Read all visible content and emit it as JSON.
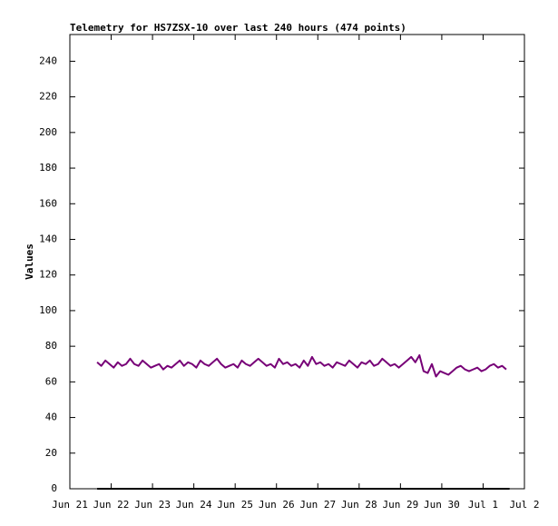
{
  "chart_data": {
    "type": "line",
    "title": "Telemetry for HS7ZSX-10 over last 240 hours (474 points)",
    "y_label": "Values",
    "xlim": [
      0,
      11
    ],
    "xticks": [
      {
        "value": 0,
        "label": "Jun 21"
      },
      {
        "value": 1,
        "label": "Jun 22"
      },
      {
        "value": 2,
        "label": "Jun 23"
      },
      {
        "value": 3,
        "label": "Jun 24"
      },
      {
        "value": 4,
        "label": "Jun 25"
      },
      {
        "value": 5,
        "label": "Jun 26"
      },
      {
        "value": 6,
        "label": "Jun 27"
      },
      {
        "value": 7,
        "label": "Jun 28"
      },
      {
        "value": 8,
        "label": "Jun 29"
      },
      {
        "value": 9,
        "label": "Jun 30"
      },
      {
        "value": 10,
        "label": "Jul 1"
      },
      {
        "value": 11,
        "label": "Jul 2"
      }
    ],
    "ylim": [
      0,
      255
    ],
    "yticks": [
      0,
      20,
      40,
      60,
      80,
      100,
      120,
      140,
      160,
      180,
      200,
      220,
      240
    ],
    "series": [
      {
        "color": "#770077",
        "x": [
          0.66,
          0.76,
          0.86,
          0.96,
          1.06,
          1.16,
          1.26,
          1.36,
          1.46,
          1.56,
          1.66,
          1.76,
          1.86,
          1.96,
          2.06,
          2.16,
          2.26,
          2.36,
          2.46,
          2.56,
          2.66,
          2.76,
          2.86,
          2.96,
          3.06,
          3.16,
          3.26,
          3.36,
          3.46,
          3.56,
          3.66,
          3.76,
          3.86,
          3.96,
          4.06,
          4.16,
          4.26,
          4.36,
          4.46,
          4.56,
          4.66,
          4.76,
          4.86,
          4.96,
          5.06,
          5.16,
          5.26,
          5.36,
          5.46,
          5.56,
          5.66,
          5.76,
          5.86,
          5.96,
          6.06,
          6.16,
          6.26,
          6.36,
          6.46,
          6.56,
          6.66,
          6.76,
          6.86,
          6.96,
          7.06,
          7.16,
          7.26,
          7.36,
          7.46,
          7.56,
          7.66,
          7.76,
          7.86,
          7.96,
          8.06,
          8.16,
          8.26,
          8.36,
          8.46,
          8.56,
          8.66,
          8.76,
          8.86,
          8.96,
          9.06,
          9.16,
          9.26,
          9.36,
          9.46,
          9.56,
          9.66,
          9.76,
          9.86,
          9.96,
          10.06,
          10.16,
          10.26,
          10.36,
          10.46,
          10.56
        ],
        "values": [
          71,
          69,
          72,
          70,
          68,
          71,
          69,
          70,
          73,
          70,
          69,
          72,
          70,
          68,
          69,
          70,
          67,
          69,
          68,
          70,
          72,
          69,
          71,
          70,
          68,
          72,
          70,
          69,
          71,
          73,
          70,
          68,
          69,
          70,
          68,
          72,
          70,
          69,
          71,
          73,
          71,
          69,
          70,
          68,
          73,
          70,
          71,
          69,
          70,
          68,
          72,
          69,
          74,
          70,
          71,
          69,
          70,
          68,
          71,
          70,
          69,
          72,
          70,
          68,
          71,
          70,
          72,
          69,
          70,
          73,
          71,
          69,
          70,
          68,
          70,
          72,
          74,
          71,
          75,
          66,
          65,
          70,
          63,
          66,
          65,
          64,
          66,
          68,
          69,
          67,
          66,
          67,
          68,
          66,
          67,
          69,
          70,
          68,
          69,
          67
        ]
      },
      {
        "color": "#000000",
        "x": [
          0.66,
          10.64
        ],
        "values": [
          0,
          0
        ]
      }
    ]
  }
}
